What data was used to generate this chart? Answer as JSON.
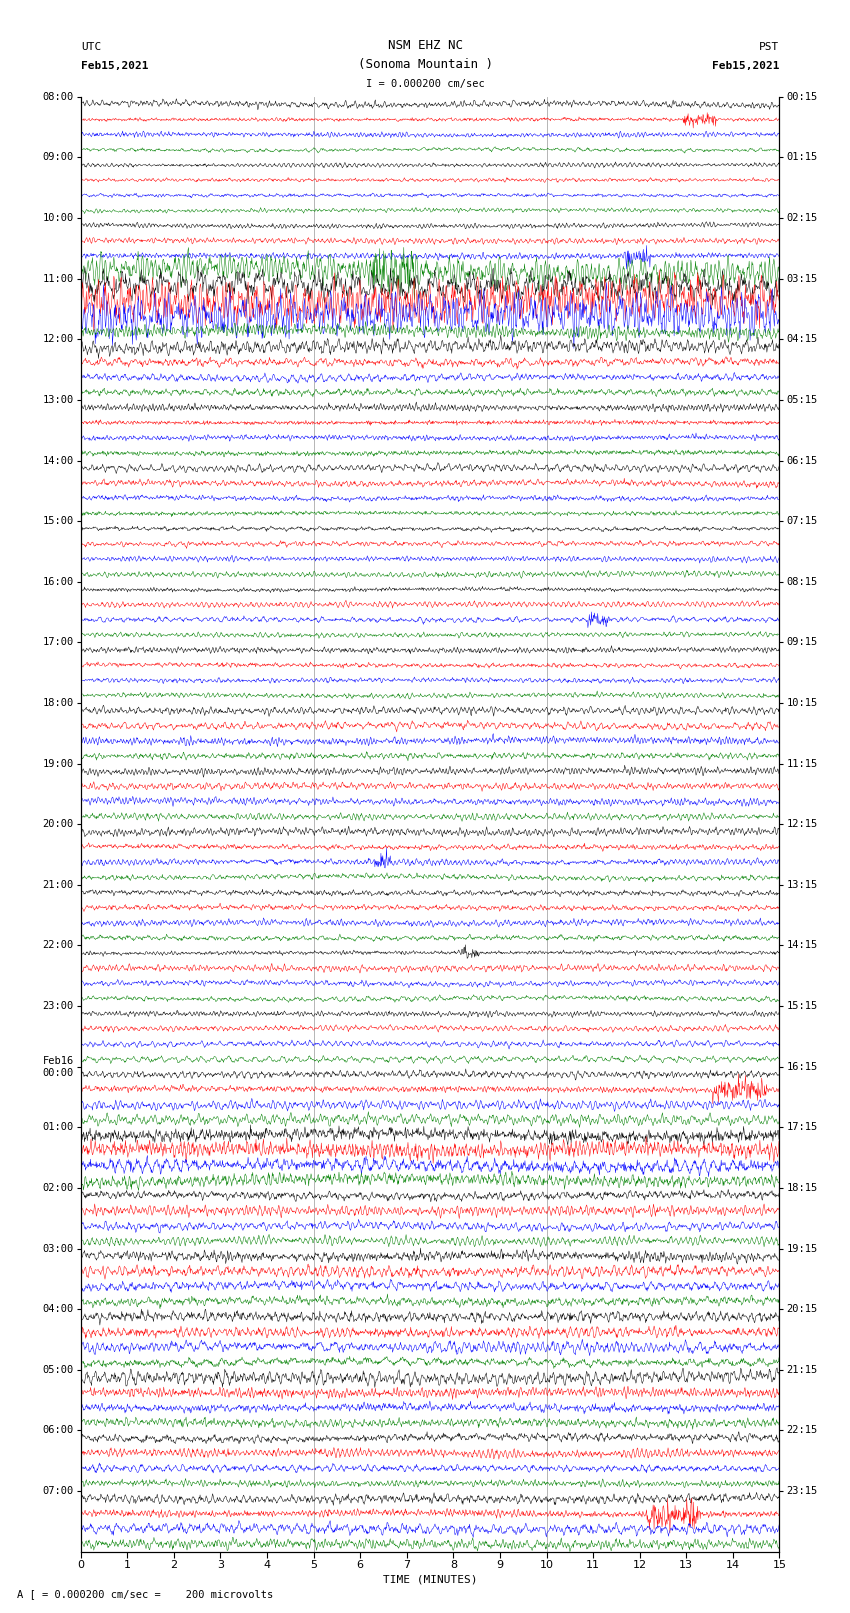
{
  "title_line1": "NSM EHZ NC",
  "title_line2": "(Sonoma Mountain )",
  "scale_text": "I = 0.000200 cm/sec",
  "left_label": "UTC",
  "right_label": "PST",
  "left_date": "Feb15,2021",
  "right_date": "Feb15,2021",
  "bottom_label": "TIME (MINUTES)",
  "footer_text": "A [ = 0.000200 cm/sec =    200 microvolts",
  "bg_color": "#ffffff",
  "colors": [
    "black",
    "red",
    "blue",
    "green"
  ],
  "n_hours": 24,
  "traces_per_hour": 4,
  "xlim": [
    0,
    15
  ],
  "figsize": [
    8.5,
    16.13
  ],
  "dpi": 100,
  "utc_labels": [
    "08:00",
    "09:00",
    "10:00",
    "11:00",
    "12:00",
    "13:00",
    "14:00",
    "15:00",
    "16:00",
    "17:00",
    "18:00",
    "19:00",
    "20:00",
    "21:00",
    "22:00",
    "23:00",
    "Feb16\n00:00",
    "01:00",
    "02:00",
    "03:00",
    "04:00",
    "05:00",
    "06:00",
    "07:00"
  ],
  "pst_labels": [
    "00:15",
    "01:15",
    "02:15",
    "03:15",
    "04:15",
    "05:15",
    "06:15",
    "07:15",
    "08:15",
    "09:15",
    "10:15",
    "11:15",
    "12:15",
    "13:15",
    "14:15",
    "15:15",
    "16:15",
    "17:15",
    "18:15",
    "19:15",
    "20:15",
    "21:15",
    "22:15",
    "23:15"
  ],
  "hour_noise": [
    0.25,
    0.2,
    0.22,
    0.18,
    0.18,
    0.16,
    0.18,
    0.16,
    0.2,
    0.2,
    0.28,
    0.9,
    1.2,
    1.8,
    1.5,
    0.5,
    0.5,
    0.35,
    0.3,
    0.32,
    0.28,
    0.28,
    0.25,
    0.28,
    0.25,
    0.25,
    0.25,
    0.25,
    0.22,
    0.22,
    0.22,
    0.22,
    0.22,
    0.22,
    0.22,
    0.22,
    0.25,
    0.25,
    0.22,
    0.22,
    0.28,
    0.28,
    0.3,
    0.3,
    0.25,
    0.25,
    0.25,
    0.25,
    0.25,
    0.25,
    0.25,
    0.25,
    0.25,
    0.25,
    0.25,
    0.25,
    0.22,
    0.22,
    0.22,
    0.22,
    0.22,
    0.22,
    0.22,
    0.22,
    0.3,
    0.3,
    0.3,
    0.3,
    0.8,
    0.8,
    0.7,
    0.6,
    0.4,
    0.35,
    0.32,
    0.3,
    0.45,
    0.45,
    0.4,
    0.38,
    0.5,
    0.48,
    0.45,
    0.42,
    0.45,
    0.42,
    0.4,
    0.38,
    0.38,
    0.35,
    0.32,
    0.3,
    0.4,
    0.38,
    0.42,
    0.4
  ]
}
